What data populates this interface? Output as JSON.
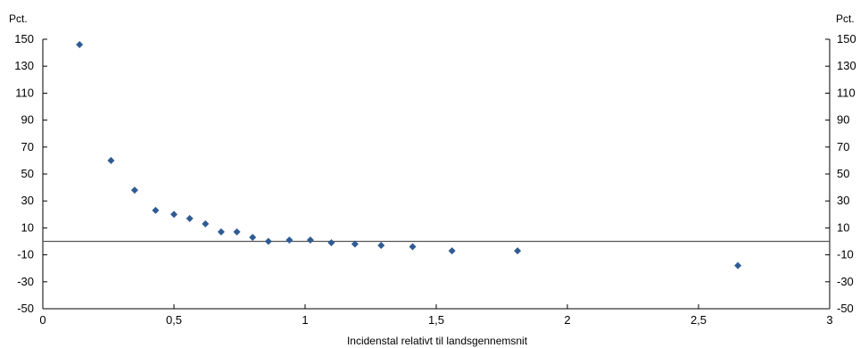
{
  "chart_data": {
    "type": "scatter",
    "xlabel": "Incidenstal relativt til landsgennemsnit",
    "ylabel_left": "Pct.",
    "ylabel_right": "Pct.",
    "xlim": [
      0,
      3
    ],
    "ylim": [
      -50,
      150
    ],
    "x_ticks": [
      0,
      0.5,
      1,
      1.5,
      2,
      2.5,
      3
    ],
    "x_tick_labels": [
      "0",
      "0,5",
      "1",
      "1,5",
      "2",
      "2,5",
      "3"
    ],
    "y_ticks": [
      150,
      130,
      110,
      90,
      70,
      50,
      30,
      10,
      -10,
      -30,
      -50
    ],
    "y_tick_labels": [
      "150",
      "130",
      "110",
      "90",
      "70",
      "50",
      "30",
      "10",
      "-10",
      "-30",
      "-50"
    ],
    "reference_line_y": 0,
    "grid": false,
    "marker_color": "#2f5b94",
    "marker_shape": "diamond",
    "points": [
      {
        "x": 0.14,
        "y": 146
      },
      {
        "x": 0.26,
        "y": 60
      },
      {
        "x": 0.35,
        "y": 38
      },
      {
        "x": 0.43,
        "y": 23
      },
      {
        "x": 0.5,
        "y": 20
      },
      {
        "x": 0.56,
        "y": 17
      },
      {
        "x": 0.62,
        "y": 13
      },
      {
        "x": 0.68,
        "y": 7
      },
      {
        "x": 0.74,
        "y": 7
      },
      {
        "x": 0.8,
        "y": 3
      },
      {
        "x": 0.86,
        "y": 0
      },
      {
        "x": 0.94,
        "y": 1
      },
      {
        "x": 1.02,
        "y": 1
      },
      {
        "x": 1.1,
        "y": -1
      },
      {
        "x": 1.19,
        "y": -2
      },
      {
        "x": 1.29,
        "y": -3
      },
      {
        "x": 1.41,
        "y": -4
      },
      {
        "x": 1.56,
        "y": -7
      },
      {
        "x": 1.81,
        "y": -7
      },
      {
        "x": 2.65,
        "y": -18
      }
    ]
  }
}
